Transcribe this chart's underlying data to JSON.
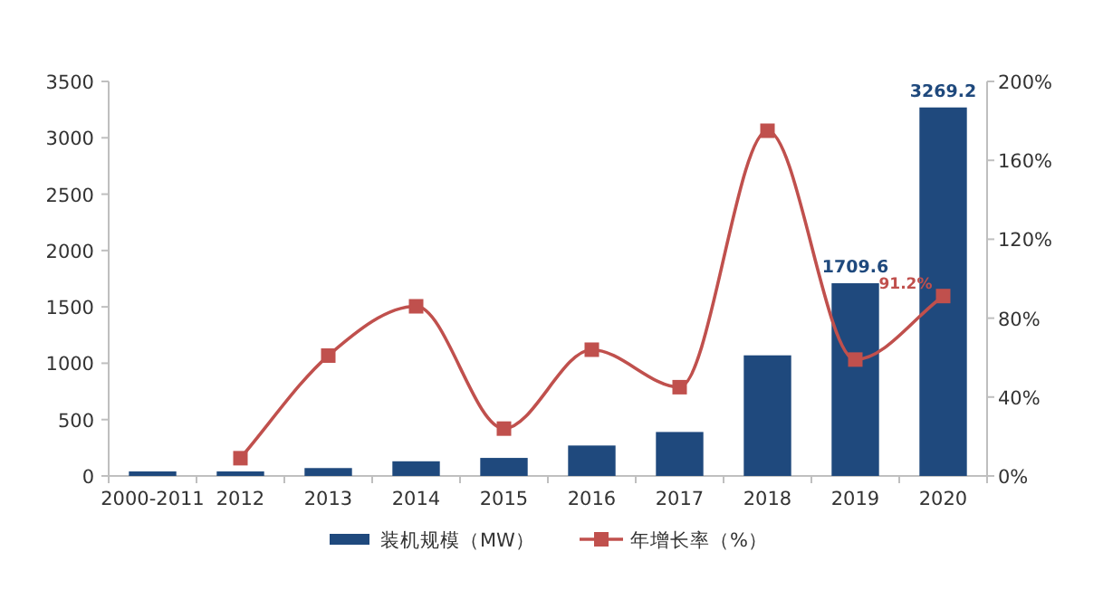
{
  "chart_data": {
    "type": "bar",
    "categories": [
      "2000-2011",
      "2012",
      "2013",
      "2014",
      "2015",
      "2016",
      "2017",
      "2018",
      "2019",
      "2020"
    ],
    "series": [
      {
        "name": "装机规模（MW）",
        "color": "#1f497d",
        "values": [
          40,
          40,
          70,
          130,
          160,
          270,
          390,
          1070,
          1709.6,
          3269.2
        ],
        "value_labels": [
          null,
          null,
          null,
          null,
          null,
          null,
          null,
          null,
          "1709.6",
          "3269.2"
        ]
      },
      {
        "name": "年增长率（%）",
        "type": "line",
        "axis": "y2",
        "color": "#c0504d",
        "values": [
          null,
          9,
          61,
          86,
          24,
          64,
          45,
          175,
          59,
          91.2
        ],
        "value_labels": [
          null,
          null,
          null,
          null,
          null,
          null,
          null,
          null,
          null,
          "91.2%"
        ]
      }
    ],
    "ylim": [
      0,
      3500
    ],
    "yticks": [
      0,
      500,
      1000,
      1500,
      2000,
      2500,
      3000,
      3500
    ],
    "y2lim": [
      0,
      200
    ],
    "y2ticks": [
      {
        "value": 0,
        "label": "0%"
      },
      {
        "value": 40,
        "label": "40%"
      },
      {
        "value": 80,
        "label": "80%"
      },
      {
        "value": 120,
        "label": "120%"
      },
      {
        "value": 160,
        "label": "160%"
      },
      {
        "value": 200,
        "label": "200%"
      }
    ],
    "legend": "bottom",
    "marker": "square",
    "grid": false
  }
}
